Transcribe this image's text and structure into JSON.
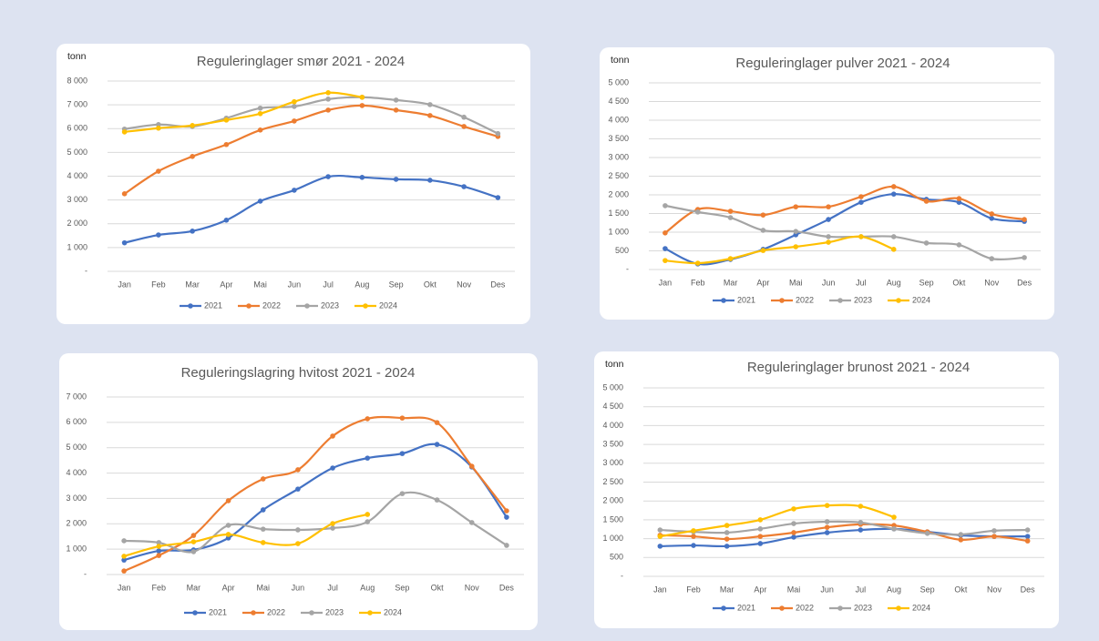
{
  "chart_data": [
    {
      "type": "line",
      "title": "Reguleringlager smør 2021 - 2024",
      "y_label": "tonn",
      "categories": [
        "Jan",
        "Feb",
        "Mar",
        "Apr",
        "Mai",
        "Jun",
        "Jul",
        "Aug",
        "Sep",
        "Okt",
        "Nov",
        "Des"
      ],
      "series": [
        {
          "name": "2021",
          "color": "#4472c4",
          "values": [
            1200,
            1530,
            1690,
            2150,
            2950,
            3410,
            3980,
            3950,
            3870,
            3830,
            3560,
            3100
          ]
        },
        {
          "name": "2022",
          "color": "#ed7d31",
          "values": [
            3260,
            4210,
            4830,
            5330,
            5940,
            6320,
            6780,
            6970,
            6780,
            6550,
            6090,
            5670
          ]
        },
        {
          "name": "2023",
          "color": "#a5a5a5",
          "values": [
            5980,
            6170,
            6090,
            6440,
            6860,
            6930,
            7240,
            7320,
            7200,
            7010,
            6480,
            5790
          ]
        },
        {
          "name": "2024",
          "color": "#ffc000",
          "values": [
            5860,
            6020,
            6130,
            6360,
            6630,
            7130,
            7510,
            7320,
            null,
            null,
            null,
            null
          ]
        }
      ],
      "ylim": [
        0,
        8000
      ],
      "yticks": [
        {
          "value": 0,
          "label": "-"
        },
        {
          "value": 1000,
          "label": "1 000"
        },
        {
          "value": 2000,
          "label": "2 000"
        },
        {
          "value": 3000,
          "label": "3 000"
        },
        {
          "value": 4000,
          "label": "4 000"
        },
        {
          "value": 5000,
          "label": "5 000"
        },
        {
          "value": 6000,
          "label": "6 000"
        },
        {
          "value": 7000,
          "label": "7 000"
        },
        {
          "value": 8000,
          "label": "8 000"
        }
      ],
      "grid": true
    },
    {
      "type": "line",
      "title": "Reguleringlager pulver 2021 - 2024",
      "y_label": "tonn",
      "categories": [
        "Jan",
        "Feb",
        "Mar",
        "Apr",
        "Mai",
        "Jun",
        "Jul",
        "Aug",
        "Sep",
        "Okt",
        "Nov",
        "Des"
      ],
      "series": [
        {
          "name": "2021",
          "color": "#4472c4",
          "values": [
            560,
            150,
            270,
            540,
            930,
            1340,
            1800,
            2020,
            1880,
            1800,
            1370,
            1290
          ]
        },
        {
          "name": "2022",
          "color": "#ed7d31",
          "values": [
            980,
            1610,
            1560,
            1460,
            1680,
            1680,
            1950,
            2220,
            1830,
            1900,
            1490,
            1340
          ]
        },
        {
          "name": "2023",
          "color": "#a5a5a5",
          "values": [
            1710,
            1540,
            1390,
            1050,
            1020,
            880,
            880,
            880,
            710,
            660,
            290,
            320
          ]
        },
        {
          "name": "2024",
          "color": "#ffc000",
          "values": [
            240,
            170,
            290,
            510,
            610,
            730,
            880,
            540,
            null,
            null,
            null,
            null
          ]
        }
      ],
      "ylim": [
        0,
        5000
      ],
      "yticks": [
        {
          "value": 0,
          "label": "-"
        },
        500,
        {
          "value": 1000,
          "label": "1 000"
        },
        {
          "value": 1500,
          "label": "1 500"
        },
        {
          "value": 2000,
          "label": "2 000"
        },
        {
          "value": 2500,
          "label": "2 500"
        },
        {
          "value": 3000,
          "label": "3 000"
        },
        {
          "value": 3500,
          "label": "3 500"
        },
        {
          "value": 4000,
          "label": "4 000"
        },
        {
          "value": 4500,
          "label": "4 500"
        },
        {
          "value": 5000,
          "label": "5 000"
        }
      ],
      "grid": true
    },
    {
      "type": "line",
      "title": "Reguleringslagring hvitost 2021 - 2024",
      "categories": [
        "Jan",
        "Feb",
        "Mar",
        "Apr",
        "Mai",
        "Jun",
        "Jul",
        "Aug",
        "Sep",
        "Okt",
        "Nov",
        "Des"
      ],
      "series": [
        {
          "name": "2021",
          "color": "#4472c4",
          "values": [
            570,
            930,
            970,
            1440,
            2550,
            3370,
            4200,
            4590,
            4770,
            5130,
            4240,
            2260
          ]
        },
        {
          "name": "2022",
          "color": "#ed7d31",
          "values": [
            140,
            750,
            1540,
            2910,
            3770,
            4130,
            5460,
            6140,
            6170,
            5990,
            4270,
            2510
          ]
        },
        {
          "name": "2023",
          "color": "#a5a5a5",
          "values": [
            1330,
            1260,
            900,
            1940,
            1790,
            1760,
            1830,
            2080,
            3190,
            2940,
            2050,
            1150
          ]
        },
        {
          "name": "2024",
          "color": "#ffc000",
          "values": [
            720,
            1110,
            1290,
            1580,
            1260,
            1220,
            2010,
            2370,
            null,
            null,
            null,
            null
          ]
        }
      ],
      "ylim": [
        0,
        7000
      ],
      "yticks": [
        {
          "value": 0,
          "label": "-"
        },
        {
          "value": 1000,
          "label": "1 000"
        },
        {
          "value": 2000,
          "label": "2 000"
        },
        {
          "value": 3000,
          "label": "3 000"
        },
        {
          "value": 4000,
          "label": "4 000"
        },
        {
          "value": 5000,
          "label": "5 000"
        },
        {
          "value": 6000,
          "label": "6 000"
        },
        {
          "value": 7000,
          "label": "7 000"
        }
      ],
      "grid": true
    },
    {
      "type": "line",
      "title": "Reguleringlager brunost 2021 - 2024",
      "y_label": "tonn",
      "categories": [
        "Jan",
        "Feb",
        "Mar",
        "Apr",
        "Mai",
        "Jun",
        "Jul",
        "Aug",
        "Sep",
        "Okt",
        "Nov",
        "Des"
      ],
      "series": [
        {
          "name": "2021",
          "color": "#4472c4",
          "values": [
            800,
            820,
            800,
            870,
            1040,
            1160,
            1230,
            1260,
            1180,
            1090,
            1060,
            1060
          ]
        },
        {
          "name": "2022",
          "color": "#ed7d31",
          "values": [
            1090,
            1060,
            990,
            1060,
            1160,
            1300,
            1380,
            1350,
            1180,
            970,
            1060,
            940
          ]
        },
        {
          "name": "2023",
          "color": "#a5a5a5",
          "values": [
            1230,
            1180,
            1160,
            1260,
            1400,
            1450,
            1430,
            1260,
            1140,
            1110,
            1210,
            1230
          ]
        },
        {
          "name": "2024",
          "color": "#ffc000",
          "values": [
            1060,
            1210,
            1350,
            1500,
            1790,
            1880,
            1860,
            1570,
            null,
            null,
            null,
            null
          ]
        }
      ],
      "ylim": [
        0,
        5000
      ],
      "yticks": [
        {
          "value": 0,
          "label": "-"
        },
        500,
        {
          "value": 1000,
          "label": "1 000"
        },
        {
          "value": 1500,
          "label": "1 500"
        },
        {
          "value": 2000,
          "label": "2 000"
        },
        {
          "value": 2500,
          "label": "2 500"
        },
        {
          "value": 3000,
          "label": "3 000"
        },
        {
          "value": 3500,
          "label": "3 500"
        },
        {
          "value": 4000,
          "label": "4 000"
        },
        {
          "value": 4500,
          "label": "4 500"
        },
        {
          "value": 5000,
          "label": "5 000"
        }
      ],
      "grid": true
    }
  ]
}
